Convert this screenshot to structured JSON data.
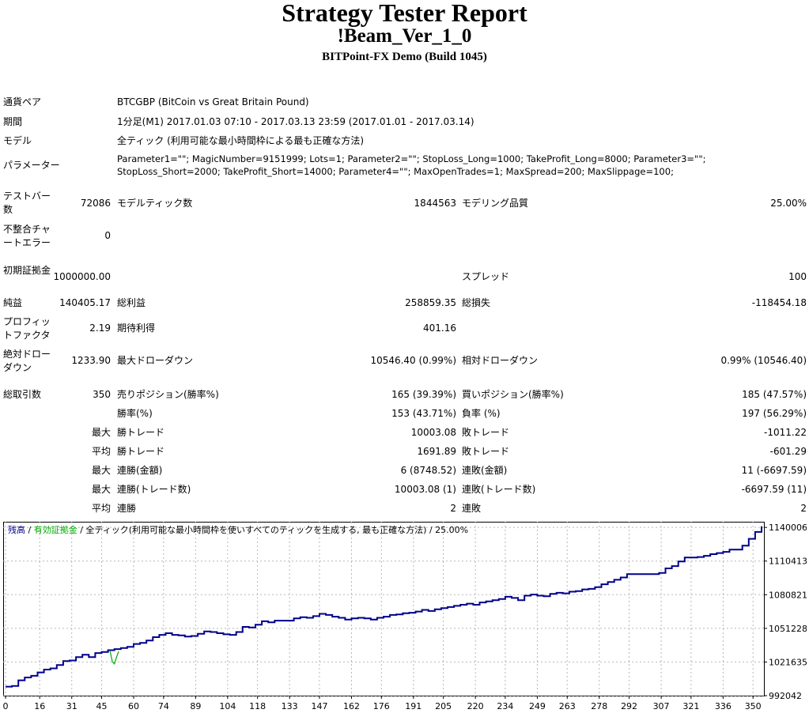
{
  "header": {
    "title": "Strategy Tester Report",
    "expert": "!Beam_Ver_1_0",
    "server": "BITPoint-FX Demo (Build 1045)"
  },
  "info": {
    "symbol_label": "通貨ペア",
    "symbol_value": "BTCGBP (BitCoin vs Great Britain Pound)",
    "period_label": "期間",
    "period_value": "1分足(M1) 2017.01.03 07:10 - 2017.03.13 23:59 (2017.01.01 - 2017.03.14)",
    "model_label": "モデル",
    "model_value": "全ティック (利用可能な最小時間枠による最も正確な方法)",
    "params_label": "パラメーター",
    "params_line1": "Parameter1=\"\"; MagicNumber=9151999; Lots=1; Parameter2=\"\"; StopLoss_Long=1000; TakeProfit_Long=8000; Parameter3=\"\";",
    "params_line2": "StopLoss_Short=2000; TakeProfit_Short=14000; Parameter4=\"\"; MaxOpenTrades=1; MaxSpread=200; MaxSlippage=100;"
  },
  "stats": {
    "bars_label": "テストバー数",
    "bars_value": "72086",
    "ticks_label": "モデルティック数",
    "ticks_value": "1844563",
    "quality_label": "モデリング品質",
    "quality_value": "25.00%",
    "mismatch_label": "不整合チャートエラー",
    "mismatch_value": "0",
    "deposit_label": "初期証拠金",
    "deposit_value": "1000000.00",
    "spread_label": "スプレッド",
    "spread_value": "100",
    "net_label": "純益",
    "net_value": "140405.17",
    "gross_profit_label": "総利益",
    "gross_profit_value": "258859.35",
    "gross_loss_label": "総損失",
    "gross_loss_value": "-118454.18",
    "pf_label": "プロフィットファクタ",
    "pf_value": "2.19",
    "expected_label": "期待利得",
    "expected_value": "401.16",
    "abs_dd_label": "絶対ドローダウン",
    "abs_dd_value": "1233.90",
    "max_dd_label": "最大ドローダウン",
    "max_dd_value": "10546.40 (0.99%)",
    "rel_dd_label": "相対ドローダウン",
    "rel_dd_value": "0.99% (10546.40)",
    "trades_label": "総取引数",
    "trades_value": "350",
    "short_label": "売りポジション(勝率%)",
    "short_value": "165 (39.39%)",
    "long_label": "買いポジション(勝率%)",
    "long_value": "185 (47.57%)",
    "win_rate_label": "勝率(%)",
    "win_rate_value": "153 (43.71%)",
    "loss_rate_label": "負率 (%)",
    "loss_rate_value": "197 (56.29%)",
    "max1_prefix": "最大",
    "largest_win_label": "勝トレード",
    "largest_win_value": "10003.08",
    "largest_loss_label": "敗トレード",
    "largest_loss_value": "-1011.22",
    "avg1_prefix": "平均",
    "avg_win_label": "勝トレード",
    "avg_win_value": "1691.89",
    "avg_loss_label": "敗トレード",
    "avg_loss_value": "-601.29",
    "max2_prefix": "最大",
    "cons_wins_money_label": "連勝(金額)",
    "cons_wins_money_value": "6 (8748.52)",
    "cons_loss_money_label": "連敗(金額)",
    "cons_loss_money_value": "11 (-6697.59)",
    "max3_prefix": "最大",
    "cons_wins_count_label": "連勝(トレード数)",
    "cons_wins_count_value": "10003.08 (1)",
    "cons_loss_count_label": "連敗(トレード数)",
    "cons_loss_count_value": "-6697.59 (11)",
    "avg2_prefix": "平均",
    "avg_cons_wins_label": "連勝",
    "avg_cons_wins_value": "2",
    "avg_cons_loss_label": "連敗",
    "avg_cons_loss_value": "2"
  },
  "chart_legend": {
    "balance": "残高",
    "sep1": " / ",
    "equity": "有効証拠金",
    "sep2": " / ",
    "model": "全ティック(利用可能な最小時間枠を使いすべてのティックを生成する, 最も正確な方法)",
    "sep3": " / ",
    "quality": "25.00%"
  },
  "colors": {
    "balance": "#00008b",
    "equity": "#00aa00",
    "grid": "#b8b8b8"
  },
  "chart_data": {
    "type": "line",
    "title": "",
    "xlabel": "",
    "ylabel": "",
    "xlim": [
      0,
      354
    ],
    "ylim": [
      992042,
      1145000
    ],
    "x_ticks": [
      0,
      16,
      31,
      45,
      60,
      74,
      89,
      104,
      118,
      133,
      147,
      162,
      176,
      191,
      205,
      220,
      234,
      249,
      263,
      278,
      292,
      307,
      321,
      336,
      350
    ],
    "y_ticks": [
      992042,
      1021635,
      1051228,
      1080821,
      1110413,
      1140006
    ],
    "grid": true,
    "legend": "top-left",
    "series": [
      {
        "name": "残高",
        "x": [
          0,
          3,
          6,
          9,
          12,
          15,
          18,
          21,
          24,
          27,
          30,
          33,
          36,
          39,
          42,
          45,
          48,
          51,
          54,
          57,
          60,
          63,
          66,
          69,
          72,
          75,
          78,
          81,
          84,
          87,
          90,
          93,
          96,
          99,
          102,
          105,
          108,
          111,
          114,
          117,
          120,
          123,
          126,
          129,
          132,
          135,
          138,
          141,
          144,
          147,
          150,
          153,
          156,
          159,
          162,
          165,
          168,
          171,
          174,
          177,
          180,
          183,
          186,
          189,
          192,
          195,
          198,
          201,
          204,
          207,
          210,
          213,
          216,
          219,
          222,
          225,
          228,
          231,
          234,
          237,
          240,
          243,
          246,
          249,
          252,
          255,
          258,
          261,
          264,
          267,
          270,
          273,
          276,
          279,
          282,
          285,
          288,
          291,
          294,
          297,
          300,
          303,
          306,
          309,
          312,
          315,
          318,
          321,
          324,
          327,
          330,
          333,
          336,
          339,
          342,
          345,
          348,
          351,
          354
        ],
        "y": [
          1000000,
          1000500,
          1005500,
          1008000,
          1009500,
          1012500,
          1015000,
          1016000,
          1019000,
          1022500,
          1023000,
          1026000,
          1028000,
          1026000,
          1029500,
          1030500,
          1032000,
          1033000,
          1034000,
          1035000,
          1037500,
          1038500,
          1040500,
          1043500,
          1045500,
          1047000,
          1045500,
          1045000,
          1044000,
          1044500,
          1046500,
          1048500,
          1048000,
          1047000,
          1046000,
          1045500,
          1048000,
          1052500,
          1052000,
          1054500,
          1057500,
          1056500,
          1058000,
          1058000,
          1058000,
          1060000,
          1061000,
          1060500,
          1062000,
          1064000,
          1063000,
          1061500,
          1060500,
          1059000,
          1060000,
          1060500,
          1060000,
          1059000,
          1060500,
          1061500,
          1063000,
          1063500,
          1064500,
          1065000,
          1066000,
          1067500,
          1066500,
          1068000,
          1069000,
          1070000,
          1071000,
          1072000,
          1073000,
          1072000,
          1074000,
          1075000,
          1076000,
          1077000,
          1079000,
          1078000,
          1076000,
          1080000,
          1081000,
          1080000,
          1079500,
          1081500,
          1082500,
          1082000,
          1083500,
          1084000,
          1085500,
          1086000,
          1087500,
          1090000,
          1092000,
          1094000,
          1096000,
          1099000,
          1099000,
          1099000,
          1099000,
          1099000,
          1100000,
          1104000,
          1106000,
          1110000,
          1113500,
          1113500,
          1114000,
          1115000,
          1116500,
          1117500,
          1118500,
          1120500,
          1120500,
          1124000,
          1130000,
          1136000,
          1141000
        ]
      },
      {
        "name": "有効証拠金",
        "x": [
          49,
          50,
          51,
          52,
          53
        ],
        "y": [
          1031000,
          1022000,
          1020000,
          1026000,
          1031000
        ]
      }
    ]
  }
}
